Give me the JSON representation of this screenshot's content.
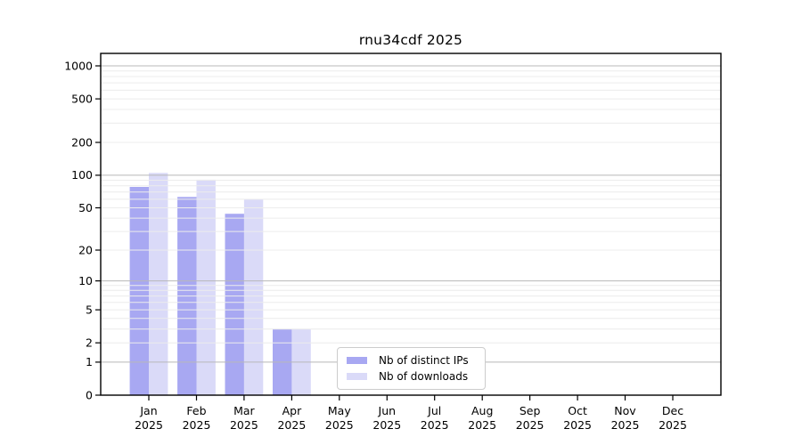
{
  "chart_data": {
    "type": "bar",
    "title": "rnu34cdf 2025",
    "x_tick_months": [
      "Jan",
      "Feb",
      "Mar",
      "Apr",
      "May",
      "Jun",
      "Jul",
      "Aug",
      "Sep",
      "Oct",
      "Nov",
      "Dec"
    ],
    "x_tick_year": "2025",
    "y_ticks": [
      0,
      1,
      2,
      5,
      10,
      20,
      50,
      100,
      200,
      500,
      1000
    ],
    "y_scale": "log1p",
    "ylim": [
      0,
      1300
    ],
    "grid": "horizontal, major and minor",
    "legend_position": "lower center",
    "series": [
      {
        "name": "Nb of distinct IPs",
        "color": "#a8a8f2",
        "fill_rgba": "rgba(131,131,236,0.7)",
        "values": [
          78,
          63,
          44,
          3,
          0,
          0,
          0,
          0,
          0,
          0,
          0,
          0
        ]
      },
      {
        "name": "Nb of downloads",
        "color": "#dadaf8",
        "fill_rgba": "rgba(202,202,245,0.7)",
        "values": [
          105,
          91,
          60,
          3,
          0,
          0,
          0,
          0,
          0,
          0,
          0,
          0
        ]
      }
    ],
    "colors": {
      "major_grid": "#b8b8b8",
      "minor_grid": "#ececec",
      "axis": "#000000",
      "text": "#000000",
      "background": "#ffffff",
      "legend_border": "#cccccc"
    }
  }
}
